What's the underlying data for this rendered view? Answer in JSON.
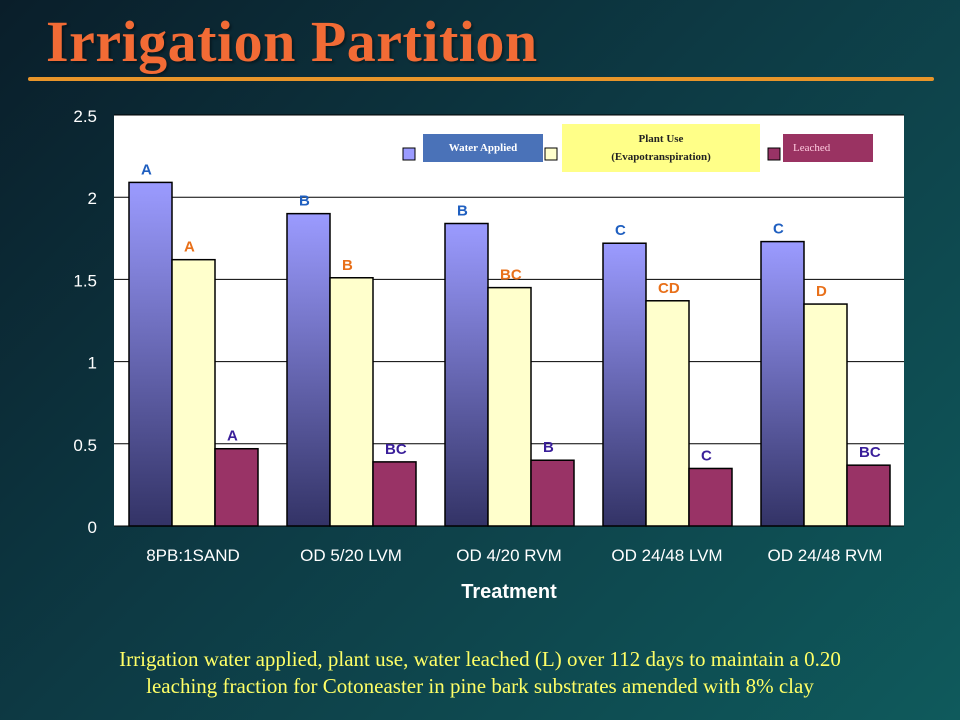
{
  "title": "Irrigation Partition",
  "caption_line1": "Irrigation water applied, plant use, water leached (L) over 112 days to maintain a 0.20",
  "caption_line2": "leaching fraction for Cotoneaster in pine bark substrates  amended with 8% clay",
  "colors": {
    "title": "#f26b35",
    "title_rule": "#e8952a",
    "caption": "#ffff66",
    "water_applied_top": "#9b9bff",
    "water_applied_bottom": "#333366",
    "plant_use": "#ffffcc",
    "leached": "#993366",
    "letters_water": "#1f5fc0",
    "letters_plant": "#e8701a",
    "letters_leached": "#3a1f9a"
  },
  "legend": {
    "water_applied": "Water Applied",
    "plant_use_line1": "Plant Use",
    "plant_use_line2": "(Evapotranspiration)",
    "leached": "Leached"
  },
  "chart_data": {
    "type": "bar",
    "xlabel": "Treatment",
    "ylabel": "",
    "ylim": [
      0,
      2.5
    ],
    "yticks": [
      "0",
      "0.5",
      "1",
      "1.5",
      "2",
      "2.5"
    ],
    "grid": true,
    "legend_position": "top-right",
    "categories": [
      "8PB:1SAND",
      "OD 5/20 LVM",
      "OD 4/20 RVM",
      "OD 24/48 LVM",
      "OD 24/48 RVM"
    ],
    "series": [
      {
        "name": "Water Applied",
        "values": [
          2.09,
          1.9,
          1.84,
          1.72,
          1.73
        ],
        "letters": [
          "A",
          "B",
          "B",
          "C",
          "C"
        ]
      },
      {
        "name": "Plant Use (Evapotranspiration)",
        "values": [
          1.62,
          1.51,
          1.45,
          1.37,
          1.35
        ],
        "letters": [
          "A",
          "B",
          "BC",
          "CD",
          "D"
        ]
      },
      {
        "name": "Leached",
        "values": [
          0.47,
          0.39,
          0.4,
          0.35,
          0.37
        ],
        "letters": [
          "A",
          "BC",
          "B",
          "C",
          "BC"
        ]
      }
    ]
  }
}
